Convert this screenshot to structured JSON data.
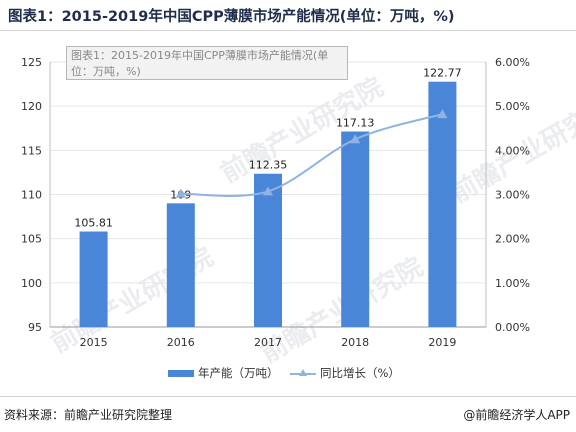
{
  "title": "图表1：2015-2019年中国CPP薄膜市场产能情况(单位：万吨，%)",
  "tooltip": {
    "line1": "图表1：2015-2019年中国CPP薄膜市场产能情况(单",
    "line2": "位：万吨，%)"
  },
  "source": "资料来源：前瞻产业研究院整理",
  "credit": "@前瞻经济学人APP",
  "watermark": "前瞻产业研究院",
  "colors": {
    "bar": "#4a86d8",
    "line": "#8fb4e3",
    "grid": "#e6e6e6",
    "axis": "#555555"
  },
  "legend": {
    "bar_label": "年产能（万吨）",
    "line_label": "同比增长（%）"
  },
  "chart_data": {
    "type": "bar",
    "categories": [
      "2015",
      "2016",
      "2017",
      "2018",
      "2019"
    ],
    "series": [
      {
        "name": "年产能（万吨）",
        "type": "bar",
        "axis": "left",
        "values": [
          105.81,
          109,
          112.35,
          117.13,
          122.77
        ],
        "labels": [
          "105.81",
          "109",
          "112.35",
          "117.13",
          "122.77"
        ]
      },
      {
        "name": "同比增长（%）",
        "type": "line",
        "axis": "right",
        "values": [
          null,
          3.02,
          3.07,
          4.25,
          4.82
        ]
      }
    ],
    "y_left": {
      "min": 95,
      "max": 125,
      "ticks": [
        "95",
        "100",
        "105",
        "110",
        "115",
        "120",
        "125"
      ]
    },
    "y_right": {
      "min": 0,
      "max": 6,
      "ticks": [
        "0.00%",
        "1.00%",
        "2.00%",
        "3.00%",
        "4.00%",
        "5.00%",
        "6.00%"
      ]
    },
    "grid": true,
    "legend_position": "bottom"
  }
}
